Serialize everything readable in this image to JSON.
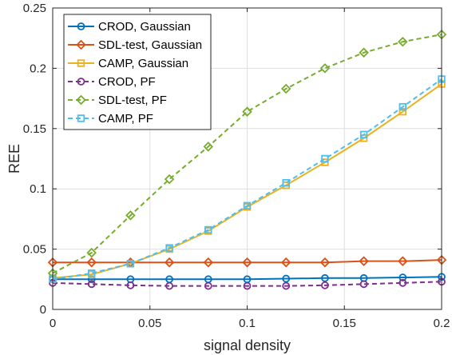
{
  "chart_data": {
    "type": "line",
    "xlabel": "signal density",
    "ylabel": "REE",
    "xlim": [
      0,
      0.2
    ],
    "ylim": [
      0,
      0.25
    ],
    "xticks": [
      0,
      0.05,
      0.1,
      0.15,
      0.2
    ],
    "xtick_labels": [
      "0",
      "0.05",
      "0.1",
      "0.15",
      "0.2"
    ],
    "yticks": [
      0,
      0.05,
      0.1,
      0.15,
      0.2,
      0.25
    ],
    "ytick_labels": [
      "0",
      "0.05",
      "0.1",
      "0.15",
      "0.2",
      "0.25"
    ],
    "grid": true,
    "legend_position": "top-left",
    "x": [
      0,
      0.02,
      0.04,
      0.06,
      0.08,
      0.1,
      0.12,
      0.14,
      0.16,
      0.18,
      0.2
    ],
    "series": [
      {
        "name": "CROD, Gaussian",
        "color": "#0072BD",
        "marker": "circle",
        "dash": "solid",
        "values": [
          0.025,
          0.025,
          0.025,
          0.025,
          0.025,
          0.025,
          0.0255,
          0.026,
          0.026,
          0.0265,
          0.027
        ]
      },
      {
        "name": "SDL-test, Gaussian",
        "color": "#D95319",
        "marker": "diamond",
        "dash": "solid",
        "values": [
          0.039,
          0.039,
          0.039,
          0.039,
          0.039,
          0.039,
          0.039,
          0.039,
          0.04,
          0.04,
          0.041
        ]
      },
      {
        "name": "CAMP, Gaussian",
        "color": "#EDB120",
        "marker": "square",
        "dash": "solid",
        "values": [
          0.026,
          0.029,
          0.038,
          0.05,
          0.065,
          0.085,
          0.103,
          0.122,
          0.142,
          0.164,
          0.187
        ]
      },
      {
        "name": "CROD, PF",
        "color": "#7E2F8E",
        "marker": "circle",
        "dash": "dashed",
        "values": [
          0.022,
          0.021,
          0.02,
          0.0195,
          0.0195,
          0.0195,
          0.0195,
          0.02,
          0.021,
          0.022,
          0.023
        ]
      },
      {
        "name": "SDL-test, PF",
        "color": "#77AC30",
        "marker": "diamond",
        "dash": "dashed",
        "values": [
          0.03,
          0.047,
          0.078,
          0.108,
          0.135,
          0.164,
          0.183,
          0.2,
          0.213,
          0.222,
          0.228
        ]
      },
      {
        "name": "CAMP, PF",
        "color": "#4DBEEE",
        "marker": "square",
        "dash": "dashed",
        "values": [
          0.025,
          0.03,
          0.038,
          0.051,
          0.066,
          0.086,
          0.105,
          0.125,
          0.145,
          0.168,
          0.191
        ]
      }
    ]
  }
}
